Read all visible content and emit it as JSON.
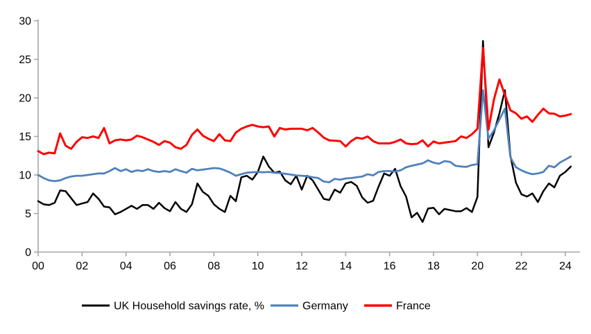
{
  "chart_data": {
    "type": "line",
    "title": "",
    "xlabel": "",
    "ylabel": "",
    "grid": false,
    "legend_position": "bottom",
    "axis_color": "#a6a6a6",
    "x_axis": {
      "start_year": 2000,
      "step_years": 0.25,
      "tick_step_years": 2,
      "tick_labels": [
        "00",
        "02",
        "04",
        "06",
        "08",
        "10",
        "12",
        "14",
        "16",
        "18",
        "20",
        "22",
        "24"
      ]
    },
    "y_axis": {
      "min": 0,
      "max": 30,
      "ticks": [
        "0",
        "5",
        "10",
        "15",
        "20",
        "25",
        "30"
      ]
    },
    "series": [
      {
        "name": "UK Household savings rate, %",
        "color": "#000000",
        "stroke_width": 2.5,
        "values": [
          6.6,
          6.2,
          6.1,
          6.4,
          8.0,
          7.9,
          7.0,
          6.1,
          6.3,
          6.5,
          7.6,
          6.9,
          5.9,
          5.8,
          4.9,
          5.2,
          5.6,
          6.0,
          5.6,
          6.1,
          6.1,
          5.6,
          6.4,
          5.7,
          5.3,
          6.5,
          5.6,
          5.2,
          6.2,
          8.9,
          7.8,
          7.3,
          6.2,
          5.6,
          5.2,
          7.3,
          6.6,
          9.7,
          9.9,
          9.4,
          10.4,
          12.4,
          11.1,
          10.3,
          10.45,
          9.3,
          8.8,
          9.9,
          8.1,
          9.9,
          9.3,
          8.1,
          6.9,
          6.75,
          8.1,
          7.7,
          8.9,
          9.1,
          8.6,
          7.1,
          6.4,
          6.65,
          8.5,
          10.2,
          9.9,
          10.8,
          8.55,
          7.2,
          4.5,
          5.1,
          3.9,
          5.65,
          5.75,
          4.9,
          5.6,
          5.45,
          5.3,
          5.3,
          5.7,
          5.2,
          7.15,
          27.4,
          13.6,
          15.5,
          18.0,
          21.0,
          12.5,
          9.0,
          7.5,
          7.2,
          7.6,
          6.5,
          7.9,
          8.9,
          8.4,
          9.9,
          10.4,
          11.1
        ]
      },
      {
        "name": "Germany",
        "color": "#4F81BD",
        "stroke_width": 2.8,
        "values": [
          10.0,
          9.6,
          9.3,
          9.2,
          9.3,
          9.6,
          9.8,
          9.9,
          9.9,
          10.0,
          10.1,
          10.2,
          10.2,
          10.5,
          10.9,
          10.5,
          10.75,
          10.4,
          10.6,
          10.5,
          10.75,
          10.5,
          10.4,
          10.5,
          10.4,
          10.75,
          10.5,
          10.3,
          10.8,
          10.6,
          10.7,
          10.8,
          10.9,
          10.85,
          10.6,
          10.3,
          9.9,
          10.1,
          10.3,
          10.35,
          10.4,
          10.35,
          10.4,
          10.3,
          10.25,
          10.15,
          10.05,
          9.95,
          9.9,
          9.85,
          9.7,
          9.6,
          9.15,
          9.05,
          9.5,
          9.4,
          9.55,
          9.6,
          9.7,
          9.8,
          10.1,
          9.95,
          10.4,
          10.5,
          10.5,
          10.45,
          10.6,
          11.0,
          11.2,
          11.35,
          11.5,
          11.9,
          11.6,
          11.45,
          11.8,
          11.7,
          11.2,
          11.1,
          11.05,
          11.3,
          11.4,
          21.0,
          14.7,
          15.8,
          17.2,
          18.6,
          12.3,
          11.0,
          10.6,
          10.3,
          10.1,
          10.2,
          10.4,
          11.2,
          11.0,
          11.6,
          12.0,
          12.4
        ]
      },
      {
        "name": "France",
        "color": "#FF0000",
        "stroke_width": 3.0,
        "values": [
          13.1,
          12.7,
          12.9,
          12.8,
          15.4,
          13.8,
          13.4,
          14.3,
          14.9,
          14.8,
          15.0,
          14.8,
          16.1,
          14.1,
          14.5,
          14.6,
          14.5,
          14.6,
          15.1,
          14.9,
          14.6,
          14.3,
          13.9,
          14.4,
          14.2,
          13.6,
          13.4,
          13.9,
          15.2,
          15.9,
          15.1,
          14.7,
          14.4,
          15.3,
          14.5,
          14.4,
          15.5,
          16.0,
          16.3,
          16.5,
          16.3,
          16.2,
          16.3,
          15.0,
          16.1,
          15.9,
          16.0,
          16.0,
          16.0,
          15.8,
          16.1,
          15.5,
          14.85,
          14.5,
          14.45,
          14.4,
          13.7,
          14.4,
          14.85,
          14.7,
          15.0,
          14.4,
          14.1,
          14.1,
          14.1,
          14.3,
          14.6,
          14.1,
          14.0,
          14.05,
          14.5,
          13.7,
          14.35,
          14.1,
          14.2,
          14.3,
          14.4,
          15.0,
          14.8,
          15.3,
          16.0,
          26.5,
          15.9,
          19.8,
          22.4,
          20.4,
          18.4,
          18.0,
          17.3,
          17.6,
          16.9,
          17.8,
          18.6,
          18.0,
          17.95,
          17.6,
          17.7,
          17.9
        ]
      }
    ],
    "legend": {
      "items": [
        "UK Household savings rate, %",
        "Germany",
        "France"
      ]
    }
  }
}
